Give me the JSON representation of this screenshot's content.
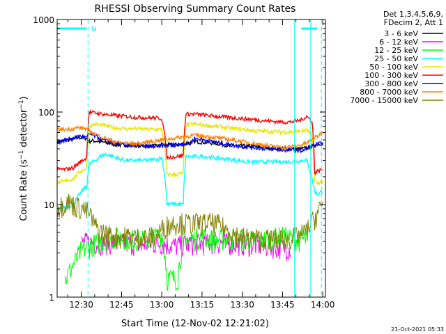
{
  "chart_data": {
    "type": "line",
    "title": "RHESSI Observing Summary Count Rates",
    "xlabel": "Start Time (12-Nov-02 12:21:02)",
    "ylabel": "Count Rate (s⁻¹ detector⁻¹)",
    "yscale": "log",
    "ylim": [
      1,
      1000
    ],
    "xlim_minutes": [
      741,
      841
    ],
    "x_ticks": [
      {
        "minute": 750,
        "label": "12:30"
      },
      {
        "minute": 765,
        "label": "12:45"
      },
      {
        "minute": 780,
        "label": "13:00"
      },
      {
        "minute": 795,
        "label": "13:15"
      },
      {
        "minute": 810,
        "label": "13:30"
      },
      {
        "minute": 825,
        "label": "13:45"
      },
      {
        "minute": 840,
        "label": "14:00"
      }
    ],
    "y_ticks": [
      {
        "value": 1,
        "label": "1"
      },
      {
        "value": 10,
        "label": "10"
      },
      {
        "value": 100,
        "label": "100"
      },
      {
        "value": 1000,
        "label": "1000"
      }
    ],
    "legend_header": [
      "Det 1,3,4,5,6,9,",
      "FDecim 2, Att 1"
    ],
    "legend_position": "right",
    "series": [
      {
        "name": "3 - 6 keV",
        "color": "#000000",
        "points": [
          [
            741,
            48
          ],
          [
            746,
            50
          ],
          [
            749,
            53
          ],
          [
            752,
            52
          ],
          [
            753,
            48
          ],
          [
            754,
            49
          ],
          [
            757,
            48
          ],
          [
            760,
            46
          ],
          [
            764,
            44
          ],
          [
            768,
            44
          ],
          [
            772,
            43
          ],
          [
            776,
            43
          ],
          [
            779,
            43
          ],
          [
            780,
            45
          ],
          [
            784,
            44
          ],
          [
            788,
            45
          ],
          [
            791,
            47
          ],
          [
            792,
            48
          ],
          [
            796,
            47
          ],
          [
            800,
            46
          ],
          [
            804,
            44
          ],
          [
            808,
            43
          ],
          [
            812,
            43
          ],
          [
            816,
            42
          ],
          [
            820,
            41
          ],
          [
            824,
            40
          ],
          [
            828,
            40
          ],
          [
            832,
            40
          ],
          [
            836,
            42
          ],
          [
            838,
            45
          ],
          [
            840,
            46
          ]
        ]
      },
      {
        "name": "6 - 12 keV",
        "color": "#ff00ff",
        "points": [
          [
            750,
            3.9
          ],
          [
            760,
            3.9
          ],
          [
            770,
            3.8
          ],
          [
            780,
            3.8
          ],
          [
            785,
            3.6
          ],
          [
            790,
            3.8
          ],
          [
            800,
            3.9
          ],
          [
            810,
            3.8
          ],
          [
            820,
            3.6
          ],
          [
            828,
            3.4
          ]
        ]
      },
      {
        "name": "12 - 25 keV",
        "color": "#00ff00",
        "points": [
          [
            744,
            1.5
          ],
          [
            748,
            2.5
          ],
          [
            750,
            3.2
          ],
          [
            755,
            3.8
          ],
          [
            760,
            4.3
          ],
          [
            765,
            4.5
          ],
          [
            770,
            4.2
          ],
          [
            775,
            4.2
          ],
          [
            780,
            4.8
          ],
          [
            782,
            1.6
          ],
          [
            786,
            1.6
          ],
          [
            788,
            4.0
          ],
          [
            795,
            4.5
          ],
          [
            800,
            4.2
          ],
          [
            805,
            4.3
          ],
          [
            810,
            4.2
          ],
          [
            815,
            4.1
          ],
          [
            820,
            4.3
          ],
          [
            825,
            4.6
          ],
          [
            830,
            4.2
          ],
          [
            834,
            4.2
          ]
        ]
      },
      {
        "name": "25 - 50 keV",
        "color": "#00ffff",
        "points": [
          [
            741,
            8.8
          ],
          [
            744,
            9.5
          ],
          [
            747,
            9.8
          ],
          [
            749,
            12.5
          ],
          [
            752,
            15.8
          ],
          [
            753,
            27
          ],
          [
            755,
            30
          ],
          [
            757,
            33
          ],
          [
            759,
            35
          ],
          [
            762,
            33
          ],
          [
            766,
            30
          ],
          [
            770,
            30
          ],
          [
            774,
            30
          ],
          [
            778,
            31
          ],
          [
            780,
            32
          ],
          [
            782,
            10
          ],
          [
            785,
            10.2
          ],
          [
            788,
            10
          ],
          [
            789,
            33
          ],
          [
            792,
            33
          ],
          [
            796,
            33
          ],
          [
            800,
            32
          ],
          [
            804,
            31
          ],
          [
            808,
            30
          ],
          [
            812,
            29
          ],
          [
            816,
            29
          ],
          [
            820,
            29
          ],
          [
            824,
            29
          ],
          [
            828,
            29
          ],
          [
            832,
            30
          ],
          [
            834,
            30
          ],
          [
            836,
            19
          ],
          [
            837,
            14
          ],
          [
            838,
            13
          ],
          [
            840,
            14
          ]
        ]
      },
      {
        "name": "50 - 100 keV",
        "color": "#e6e600",
        "points": [
          [
            741,
            17
          ],
          [
            744,
            18
          ],
          [
            747,
            19
          ],
          [
            749,
            22
          ],
          [
            752,
            25
          ],
          [
            753,
            70
          ],
          [
            755,
            74
          ],
          [
            758,
            72
          ],
          [
            762,
            68
          ],
          [
            766,
            66
          ],
          [
            770,
            66
          ],
          [
            774,
            65
          ],
          [
            778,
            65
          ],
          [
            780,
            65
          ],
          [
            782,
            21
          ],
          [
            785,
            21
          ],
          [
            788,
            22
          ],
          [
            789,
            73
          ],
          [
            792,
            74
          ],
          [
            796,
            72
          ],
          [
            800,
            70
          ],
          [
            804,
            68
          ],
          [
            808,
            66
          ],
          [
            812,
            64
          ],
          [
            816,
            62
          ],
          [
            820,
            62
          ],
          [
            824,
            61
          ],
          [
            828,
            61
          ],
          [
            832,
            62
          ],
          [
            834,
            64
          ],
          [
            836,
            55
          ],
          [
            837,
            18
          ],
          [
            838,
            17
          ],
          [
            840,
            18
          ]
        ]
      },
      {
        "name": "100 - 300 keV",
        "color": "#ff0000",
        "points": [
          [
            741,
            24
          ],
          [
            744,
            24
          ],
          [
            747,
            25
          ],
          [
            749,
            28
          ],
          [
            752,
            32
          ],
          [
            753,
            100
          ],
          [
            755,
            98
          ],
          [
            758,
            95
          ],
          [
            762,
            92
          ],
          [
            766,
            90
          ],
          [
            770,
            88
          ],
          [
            774,
            87
          ],
          [
            778,
            86
          ],
          [
            780,
            85
          ],
          [
            782,
            32
          ],
          [
            785,
            33
          ],
          [
            788,
            34
          ],
          [
            789,
            95
          ],
          [
            792,
            95
          ],
          [
            796,
            93
          ],
          [
            800,
            90
          ],
          [
            804,
            88
          ],
          [
            808,
            86
          ],
          [
            812,
            84
          ],
          [
            816,
            82
          ],
          [
            820,
            80
          ],
          [
            824,
            78
          ],
          [
            828,
            78
          ],
          [
            832,
            82
          ],
          [
            834,
            90
          ],
          [
            836,
            80
          ],
          [
            837,
            22
          ],
          [
            838,
            23
          ],
          [
            840,
            24
          ]
        ]
      },
      {
        "name": "300 - 800 keV",
        "color": "#0000ff",
        "points": [
          [
            741,
            47
          ],
          [
            744,
            50
          ],
          [
            747,
            52
          ],
          [
            749,
            55
          ],
          [
            752,
            53
          ],
          [
            753,
            58
          ],
          [
            755,
            55
          ],
          [
            758,
            50
          ],
          [
            762,
            47
          ],
          [
            766,
            44
          ],
          [
            770,
            43
          ],
          [
            774,
            43
          ],
          [
            778,
            42
          ],
          [
            780,
            43
          ],
          [
            784,
            44
          ],
          [
            788,
            45
          ],
          [
            791,
            46
          ],
          [
            792,
            52
          ],
          [
            796,
            50
          ],
          [
            800,
            47
          ],
          [
            804,
            45
          ],
          [
            808,
            43
          ],
          [
            812,
            42
          ],
          [
            816,
            41
          ],
          [
            820,
            40
          ],
          [
            824,
            39
          ],
          [
            828,
            39
          ],
          [
            832,
            38
          ],
          [
            834,
            40
          ],
          [
            836,
            43
          ],
          [
            838,
            45
          ],
          [
            840,
            46
          ]
        ]
      },
      {
        "name": "800 - 7000 keV",
        "color": "#ff8000",
        "points": [
          [
            741,
            64
          ],
          [
            744,
            65
          ],
          [
            747,
            66
          ],
          [
            749,
            68
          ],
          [
            752,
            66
          ],
          [
            753,
            62
          ],
          [
            755,
            58
          ],
          [
            758,
            53
          ],
          [
            762,
            48
          ],
          [
            766,
            46
          ],
          [
            770,
            45
          ],
          [
            774,
            47
          ],
          [
            778,
            49
          ],
          [
            780,
            50
          ],
          [
            784,
            52
          ],
          [
            788,
            54
          ],
          [
            792,
            56
          ],
          [
            796,
            55
          ],
          [
            800,
            53
          ],
          [
            804,
            51
          ],
          [
            808,
            49
          ],
          [
            812,
            47
          ],
          [
            816,
            45
          ],
          [
            820,
            43
          ],
          [
            824,
            42
          ],
          [
            828,
            42
          ],
          [
            832,
            44
          ],
          [
            834,
            46
          ],
          [
            836,
            50
          ],
          [
            838,
            55
          ],
          [
            840,
            60
          ]
        ]
      },
      {
        "name": "7000 - 15000 keV",
        "color": "#808000",
        "points": [
          [
            741,
            9.5
          ],
          [
            743,
            10
          ],
          [
            745,
            11
          ],
          [
            747,
            10
          ],
          [
            749,
            9.5
          ],
          [
            751,
            9
          ],
          [
            753,
            8
          ],
          [
            755,
            6
          ],
          [
            757,
            5.2
          ],
          [
            760,
            4.8
          ],
          [
            763,
            4.5
          ],
          [
            766,
            4.6
          ],
          [
            769,
            4.5
          ],
          [
            772,
            4.4
          ],
          [
            775,
            4.5
          ],
          [
            778,
            4.6
          ],
          [
            780,
            5.5
          ],
          [
            783,
            6.2
          ],
          [
            786,
            6.5
          ],
          [
            789,
            6.3
          ],
          [
            792,
            6.3
          ],
          [
            795,
            6.3
          ],
          [
            798,
            6.4
          ],
          [
            801,
            6.2
          ],
          [
            804,
            5.4
          ],
          [
            807,
            4.9
          ],
          [
            810,
            4.5
          ],
          [
            813,
            4.4
          ],
          [
            816,
            4.3
          ],
          [
            819,
            4.3
          ],
          [
            822,
            4.3
          ],
          [
            825,
            4.3
          ],
          [
            828,
            4.4
          ],
          [
            831,
            4.5
          ],
          [
            834,
            5.2
          ],
          [
            836,
            6.5
          ],
          [
            838,
            8
          ],
          [
            840,
            10
          ]
        ]
      }
    ],
    "attenuator_markers": {
      "color": "#00ffff",
      "night_intervals": [
        [
          741,
          752
        ],
        [
          832,
          838
        ]
      ],
      "solid_lines": [
        829.5,
        835.5
      ],
      "dashed_lines": [
        752.5,
        839.5
      ],
      "label": "N"
    },
    "timestamp": "21-Oct-2021 05:33"
  }
}
